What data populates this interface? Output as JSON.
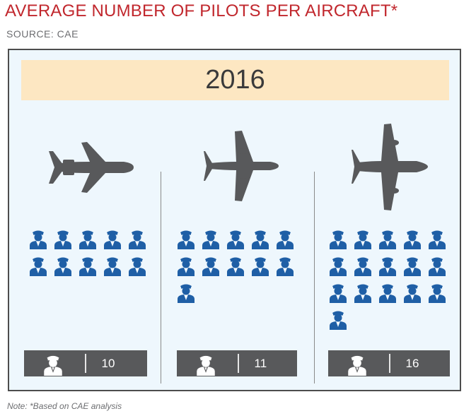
{
  "header": {
    "title": "AVERAGE NUMBER OF PILOTS PER AIRCRAFT*",
    "source": "SOURCE: CAE"
  },
  "panel": {
    "year": "2016",
    "groups": [
      {
        "aircraft": "small-jet-icon",
        "pilots": 10,
        "count_label": "10"
      },
      {
        "aircraft": "medium-jet-icon",
        "pilots": 11,
        "count_label": "11"
      },
      {
        "aircraft": "large-jet-icon",
        "pilots": 16,
        "count_label": "16"
      }
    ]
  },
  "footer": {
    "note": "Note: *Based on CAE analysis"
  },
  "colors": {
    "title": "#c1272d",
    "pilot_icon": "#1f5fa6",
    "aircraft": "#58595b",
    "count_box": "#58595b",
    "year_band": "#fde7c2",
    "frame_bg": "#eef7fd"
  }
}
